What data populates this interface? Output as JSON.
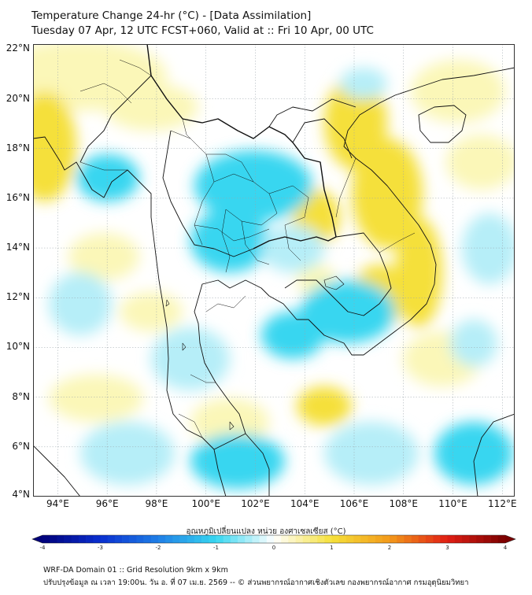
{
  "header": {
    "title_line1": "Temperature Change 24-hr (°C) - [Data Assimilation]",
    "title_line2": "Tuesday 07 Apr, 12 UTC FCST+060, Valid at :: Fri 10 Apr, 00 UTC"
  },
  "map": {
    "lat_labels": [
      "22°N",
      "20°N",
      "18°N",
      "16°N",
      "14°N",
      "12°N",
      "10°N",
      "8°N",
      "6°N",
      "4°N"
    ],
    "lon_labels": [
      "94°E",
      "96°E",
      "98°E",
      "100°E",
      "102°E",
      "104°E",
      "106°E",
      "108°E",
      "110°E",
      "112°E"
    ],
    "extent": {
      "lon_min": 93,
      "lon_max": 112.5,
      "lat_min": 4,
      "lat_max": 22.2
    },
    "field_colors": {
      "warm": "#f5e03a",
      "warm_light": "#fbf7b8",
      "cool": "#38d6f0",
      "cool_light": "#b6eef8",
      "neutral": "#ffffff"
    }
  },
  "colorbar": {
    "title": "อุณหภูมิเปลี่ยนแปลง หน่วย องศาเซลเซียส (°C)",
    "min": -4,
    "max": 4,
    "ticks": [
      "-4",
      "-3",
      "-2",
      "-1",
      "0",
      "1",
      "2",
      "3",
      "4"
    ],
    "stops": [
      "#00007a",
      "#0a2fd0",
      "#1f7fe6",
      "#38d6f0",
      "#ffffff",
      "#f5e03a",
      "#f39a1a",
      "#e01e14",
      "#7a0000"
    ]
  },
  "footer": {
    "line1": "WRF-DA Domain 01 :: Grid Resolution 9km x 9km",
    "line2": "ปรับปรุงข้อมูล ณ เวลา 19:00น. วัน อ. ที่ 07 เม.ย. 2569 -- © ส่วนพยากรณ์อากาศเชิงตัวเลข กองพยากรณ์อากาศ กรมอุตุนิยมวิทยา"
  }
}
